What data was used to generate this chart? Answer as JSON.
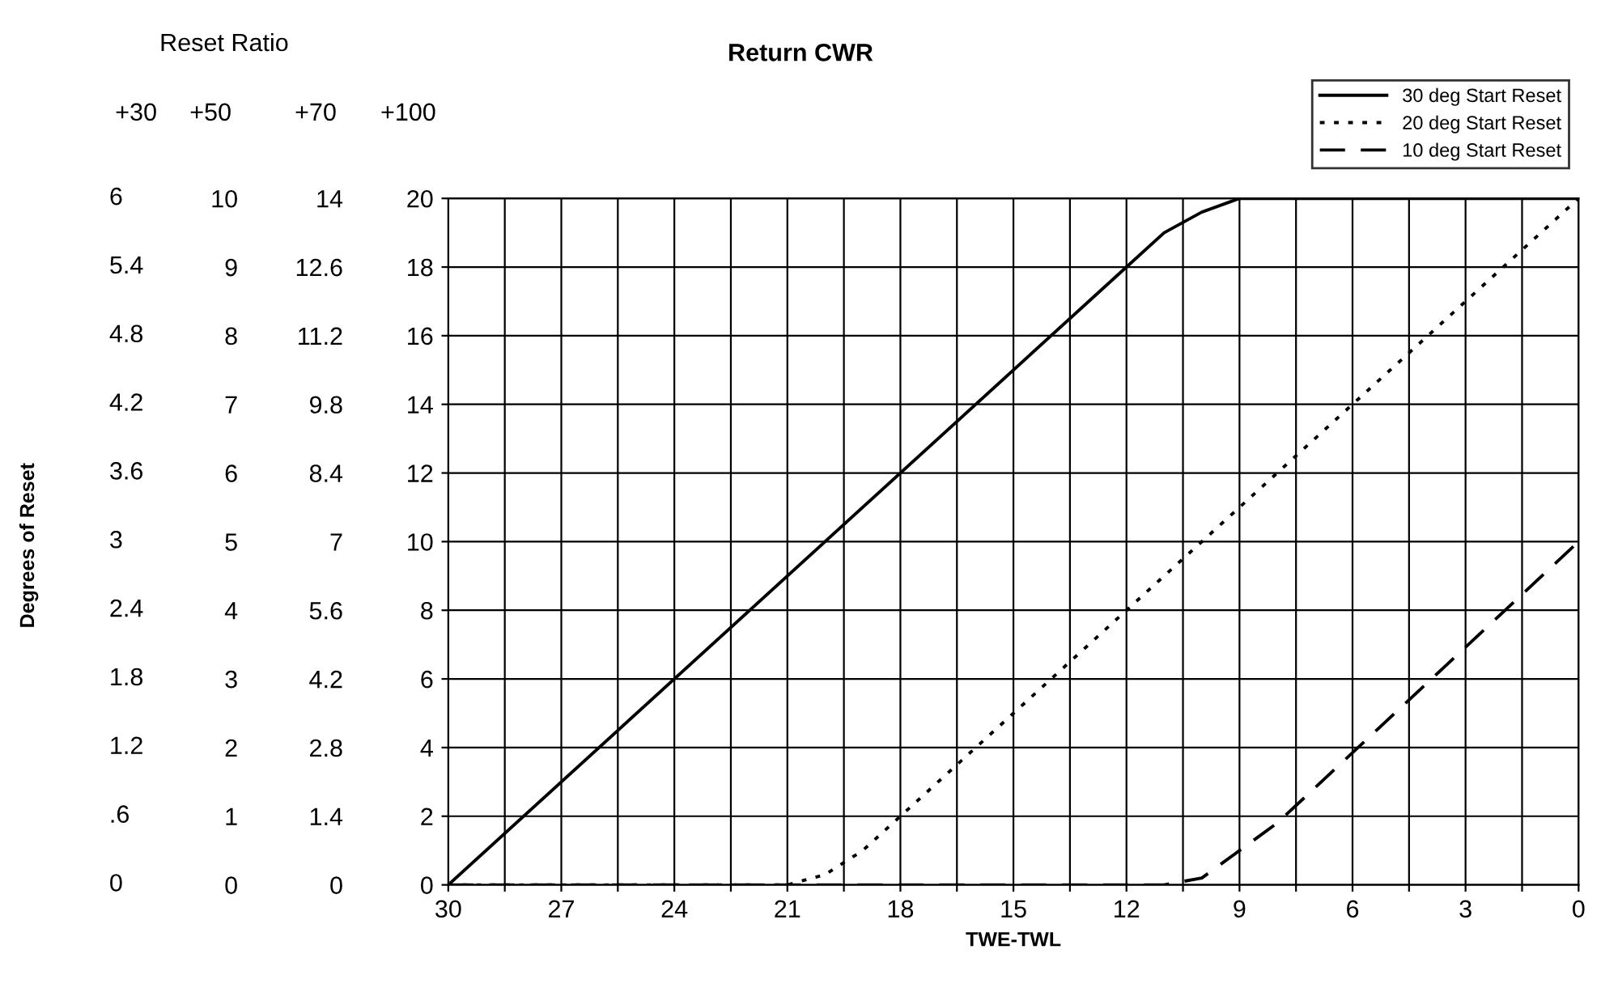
{
  "chart_data": {
    "type": "line",
    "title": "Return CWR",
    "xlabel": "TWE-TWL",
    "annotations": [
      "Reset Ratio",
      "+100",
      "Degrees of Reset",
      "+30",
      "6",
      "5.4",
      "4.8",
      "4.2",
      "3.6",
      "3",
      "2.4",
      "1.8",
      "1.2",
      ".6",
      "0"
    ],
    "xlim": [
      30,
      0
    ],
    "xticks": [
      30,
      {
        "value": 28.5,
        "label": null
      },
      27,
      {
        "value": 25.5,
        "label": null
      },
      24,
      {
        "value": 22.5,
        "label": null
      },
      21,
      {
        "value": 19.5,
        "label": null
      },
      18,
      {
        "value": 16.5,
        "label": null
      },
      15,
      {
        "value": 13.5,
        "label": null
      },
      12,
      {
        "value": 10.5,
        "label": null
      },
      9,
      {
        "value": 7.5,
        "label": null
      },
      6,
      {
        "value": 4.5,
        "label": null
      },
      3,
      {
        "value": 1.5,
        "label": null
      },
      0
    ],
    "ylim": [
      0,
      20
    ],
    "yticks": [
      0,
      2,
      4,
      6,
      8,
      10,
      12,
      14,
      16,
      18,
      20
    ],
    "y2label": "+70",
    "y2lim": [
      0,
      14
    ],
    "y2ticks": [
      0,
      1.4,
      2.8,
      4.2,
      5.6,
      7,
      8.4,
      9.8,
      11.2,
      12.6,
      14
    ],
    "y3label": "+50",
    "y3lim": [
      0,
      10
    ],
    "y3ticks": [
      0,
      1,
      2,
      3,
      4,
      5,
      6,
      7,
      8,
      9,
      10
    ],
    "grid": true,
    "legend": "top right",
    "marker": "none",
    "series": [
      {
        "name": "30 deg Start Reset",
        "color": "#000000",
        "line_style": "solid",
        "x": [
          30,
          12,
          11,
          10,
          9,
          0
        ],
        "values": [
          0,
          18,
          19,
          19.6,
          20,
          20
        ]
      },
      {
        "name": "20 deg Start Reset",
        "color": "#000000",
        "line_style": "dotted",
        "x": [
          30,
          21,
          20,
          19,
          0
        ],
        "values": [
          0,
          0,
          0.3,
          1,
          20
        ]
      },
      {
        "name": "10 deg Start Reset",
        "color": "#000000",
        "line_style": "dashed",
        "x": [
          30,
          11,
          10,
          9,
          8,
          0
        ],
        "values": [
          0,
          0,
          0.2,
          1,
          1.8,
          10
        ]
      }
    ]
  }
}
